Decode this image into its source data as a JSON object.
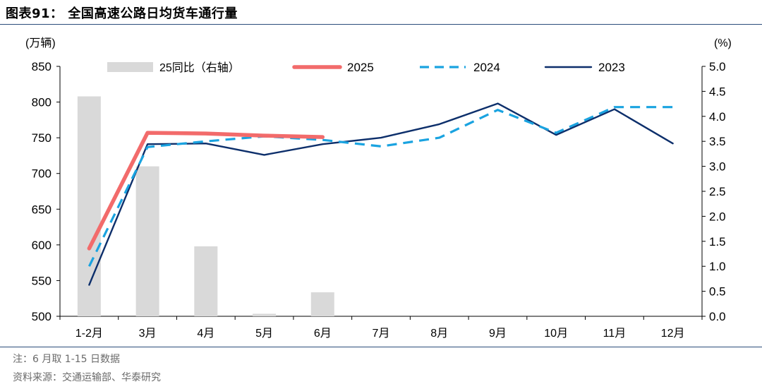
{
  "figure": {
    "title": "图表91：  全国高速公路日均货车通行量",
    "note": "注：6 月取 1-15 日数据",
    "source": "资料来源：交通运输部、华泰研究"
  },
  "chart_data": {
    "type": "bar+line",
    "categories": [
      "1-2月",
      "3月",
      "4月",
      "5月",
      "6月",
      "7月",
      "8月",
      "9月",
      "10月",
      "11月",
      "12月"
    ],
    "y_left": {
      "unit_label": "(万辆)",
      "min": 500,
      "max": 850,
      "ticks": [
        500,
        550,
        600,
        650,
        700,
        750,
        800,
        850
      ]
    },
    "y_right": {
      "unit_label": "(%)",
      "min": 0.0,
      "max": 5.0,
      "ticks": [
        "0.0",
        "0.5",
        "1.0",
        "1.5",
        "2.0",
        "2.5",
        "3.0",
        "3.5",
        "4.0",
        "4.5",
        "5.0"
      ]
    },
    "bars": {
      "name": "25同比（右轴）",
      "axis": "right",
      "color": "#d9d9d9",
      "values": [
        4.4,
        3.0,
        1.4,
        0.05,
        0.48,
        null,
        null,
        null,
        null,
        null,
        null
      ]
    },
    "series": [
      {
        "name": "2025",
        "axis": "left",
        "color": "#f26b6b",
        "style": "solid-thick",
        "values": [
          595,
          757,
          756,
          753,
          751,
          null,
          null,
          null,
          null,
          null,
          null
        ]
      },
      {
        "name": "2024",
        "axis": "left",
        "color": "#1aa3e0",
        "style": "dashed",
        "values": [
          570,
          737,
          745,
          752,
          747,
          738,
          750,
          789,
          757,
          793,
          793
        ]
      },
      {
        "name": "2023",
        "axis": "left",
        "color": "#0d2f6b",
        "style": "solid",
        "values": [
          544,
          741,
          742,
          726,
          741,
          750,
          769,
          798,
          754,
          790,
          742
        ]
      }
    ],
    "legend_position": "top",
    "grid": false
  }
}
